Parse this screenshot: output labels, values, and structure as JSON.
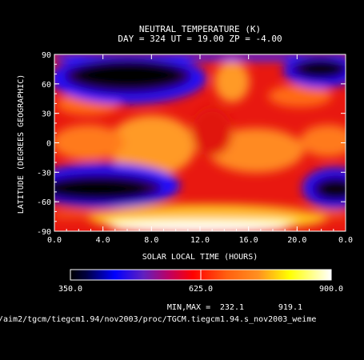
{
  "chart_data": {
    "type": "heatmap",
    "title": "NEUTRAL TEMPERATURE (K)",
    "subtitle": "DAY = 324  UT = 19.00  ZP =   -4.00",
    "xlabel": "SOLAR LOCAL TIME (HOURS)",
    "ylabel": "LATITUDE (DEGREES GEOGRAPHIC)",
    "x_ticks": [
      "0.0",
      "4.0",
      "8.0",
      "12.0",
      "16.0",
      "20.0",
      "0.0"
    ],
    "y_ticks": [
      "-90",
      "-60",
      "-30",
      "0",
      "30",
      "60",
      "90"
    ],
    "colorbar_ticks": [
      "350.0",
      "625.0",
      "900.0"
    ],
    "colorbar_range": [
      350,
      900
    ],
    "minmax_label": "MIN,MAX =",
    "min": "232.1",
    "max": "919.1",
    "footer_path": "/aim2/tgcm/tiegcm1.94/nov2003/proc/TGCM.tiegcm1.94.s_nov2003_weime",
    "colors": {
      "low": "#000000",
      "cold": "#1010ff",
      "mid": "#e01010",
      "warm": "#ff9020",
      "hot": "#ffffff"
    }
  }
}
